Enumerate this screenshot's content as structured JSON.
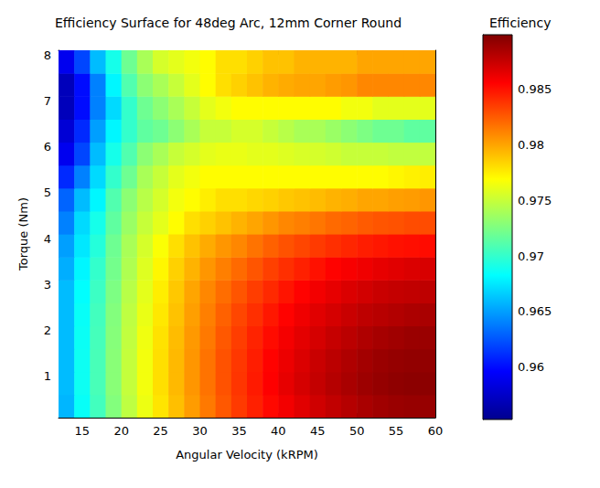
{
  "chart_data": {
    "type": "heatmap",
    "title": "Efficiency Surface for 48deg Arc, 12mm Corner Round",
    "x_label": "Angular Velocity (kRPM)",
    "y_label": "Torque (Nm)",
    "x": [
      13,
      15,
      17,
      19,
      21,
      23,
      25,
      27,
      29,
      31,
      33,
      35,
      37,
      39,
      41,
      43,
      45,
      47,
      49,
      51,
      53,
      55,
      57,
      59
    ],
    "y": [
      0.35,
      0.85,
      1.35,
      1.85,
      2.35,
      2.85,
      3.35,
      3.85,
      4.35,
      4.85,
      5.35,
      5.85,
      6.35,
      6.85,
      7.35,
      7.85
    ],
    "values": [
      [
        0.9658,
        0.9685,
        0.9705,
        0.9727,
        0.9747,
        0.9763,
        0.9778,
        0.9791,
        0.9803,
        0.9815,
        0.9826,
        0.9836,
        0.9845,
        0.9853,
        0.986,
        0.9866,
        0.9872,
        0.9877,
        0.9881,
        0.9885,
        0.9888,
        0.989,
        0.9891,
        0.9891
      ],
      [
        0.966,
        0.9687,
        0.9707,
        0.9729,
        0.9749,
        0.9765,
        0.978,
        0.9793,
        0.9805,
        0.9817,
        0.9828,
        0.9838,
        0.9847,
        0.9856,
        0.9864,
        0.987,
        0.9876,
        0.9881,
        0.9885,
        0.9889,
        0.9892,
        0.9894,
        0.9895,
        0.9895
      ],
      [
        0.966,
        0.9687,
        0.9707,
        0.9729,
        0.9749,
        0.9765,
        0.978,
        0.9793,
        0.9805,
        0.9817,
        0.9828,
        0.9837,
        0.9846,
        0.9855,
        0.9862,
        0.9868,
        0.9874,
        0.9879,
        0.9883,
        0.9887,
        0.989,
        0.9892,
        0.9893,
        0.9893
      ],
      [
        0.966,
        0.9686,
        0.9706,
        0.9728,
        0.9748,
        0.9764,
        0.9779,
        0.9792,
        0.9804,
        0.9815,
        0.9826,
        0.9835,
        0.9844,
        0.9852,
        0.9859,
        0.9865,
        0.987,
        0.9875,
        0.9879,
        0.9883,
        0.9886,
        0.9888,
        0.989,
        0.989
      ],
      [
        0.966,
        0.9685,
        0.9705,
        0.9727,
        0.9747,
        0.9762,
        0.9777,
        0.979,
        0.9802,
        0.9813,
        0.9823,
        0.9832,
        0.984,
        0.9848,
        0.9855,
        0.9861,
        0.9866,
        0.987,
        0.9874,
        0.9878,
        0.988,
        0.9882,
        0.9884,
        0.9885
      ],
      [
        0.966,
        0.9683,
        0.9703,
        0.9725,
        0.9745,
        0.976,
        0.9775,
        0.9788,
        0.98,
        0.981,
        0.9819,
        0.9827,
        0.9835,
        0.9842,
        0.9849,
        0.9855,
        0.986,
        0.9864,
        0.9868,
        0.9871,
        0.9874,
        0.9876,
        0.9877,
        0.9878
      ],
      [
        0.9655,
        0.968,
        0.97,
        0.9722,
        0.9742,
        0.9758,
        0.9772,
        0.9785,
        0.9795,
        0.9805,
        0.9813,
        0.982,
        0.9827,
        0.9834,
        0.984,
        0.9845,
        0.985,
        0.9855,
        0.9858,
        0.9861,
        0.9864,
        0.9866,
        0.9868,
        0.9869
      ],
      [
        0.965,
        0.9675,
        0.9695,
        0.972,
        0.974,
        0.9755,
        0.9768,
        0.978,
        0.979,
        0.9798,
        0.9805,
        0.981,
        0.9817,
        0.9823,
        0.9828,
        0.9832,
        0.9836,
        0.984,
        0.9843,
        0.9846,
        0.9848,
        0.985,
        0.9851,
        0.9852
      ],
      [
        0.964,
        0.967,
        0.969,
        0.9715,
        0.9735,
        0.975,
        0.976,
        0.977,
        0.978,
        0.9785,
        0.979,
        0.9795,
        0.98,
        0.9805,
        0.981,
        0.9813,
        0.9816,
        0.982,
        0.9822,
        0.9825,
        0.9827,
        0.9828,
        0.983,
        0.983
      ],
      [
        0.963,
        0.966,
        0.968,
        0.971,
        0.973,
        0.9745,
        0.9755,
        0.9765,
        0.977,
        0.9775,
        0.978,
        0.978,
        0.9783,
        0.9785,
        0.9788,
        0.979,
        0.9792,
        0.9795,
        0.9797,
        0.98,
        0.98,
        0.9802,
        0.9803,
        0.9805
      ],
      [
        0.961,
        0.964,
        0.967,
        0.97,
        0.972,
        0.974,
        0.975,
        0.976,
        0.9765,
        0.977,
        0.977,
        0.977,
        0.977,
        0.977,
        0.977,
        0.977,
        0.977,
        0.977,
        0.977,
        0.977,
        0.977,
        0.9772,
        0.9774,
        0.9775
      ],
      [
        0.959,
        0.962,
        0.966,
        0.969,
        0.971,
        0.973,
        0.974,
        0.975,
        0.9755,
        0.976,
        0.9762,
        0.9762,
        0.976,
        0.976,
        0.9758,
        0.9756,
        0.9755,
        0.9753,
        0.975,
        0.975,
        0.975,
        0.9748,
        0.9748,
        0.9748
      ],
      [
        0.958,
        0.961,
        0.965,
        0.968,
        0.97,
        0.9715,
        0.972,
        0.973,
        0.974,
        0.975,
        0.975,
        0.9755,
        0.9755,
        0.975,
        0.9745,
        0.974,
        0.974,
        0.9735,
        0.973,
        0.9725,
        0.972,
        0.972,
        0.9715,
        0.9715
      ],
      [
        0.957,
        0.96,
        0.964,
        0.967,
        0.97,
        0.972,
        0.973,
        0.974,
        0.975,
        0.976,
        0.9765,
        0.977,
        0.977,
        0.977,
        0.977,
        0.977,
        0.977,
        0.977,
        0.9765,
        0.9765,
        0.976,
        0.976,
        0.976,
        0.976
      ],
      [
        0.957,
        0.96,
        0.964,
        0.968,
        0.971,
        0.973,
        0.974,
        0.975,
        0.976,
        0.977,
        0.978,
        0.9785,
        0.979,
        0.9795,
        0.9798,
        0.98,
        0.98,
        0.9803,
        0.9805,
        0.981,
        0.981,
        0.981,
        0.981,
        0.981
      ],
      [
        0.959,
        0.962,
        0.966,
        0.969,
        0.972,
        0.974,
        0.9755,
        0.976,
        0.9765,
        0.977,
        0.978,
        0.978,
        0.9785,
        0.979,
        0.979,
        0.9795,
        0.9795,
        0.9795,
        0.9795,
        0.98,
        0.98,
        0.98,
        0.98,
        0.98
      ]
    ],
    "xlim": [
      12,
      60
    ],
    "ylim": [
      0.1,
      8.1
    ],
    "xticks": [
      15,
      20,
      25,
      30,
      35,
      40,
      45,
      50,
      55,
      60
    ],
    "yticks": [
      1,
      2,
      3,
      4,
      5,
      6,
      7,
      8
    ],
    "grid": false,
    "colorbar": {
      "label": "Efficiency",
      "range": [
        0.9553,
        0.9899
      ],
      "ticks": [
        0.96,
        0.965,
        0.97,
        0.975,
        0.98,
        0.985
      ]
    }
  }
}
